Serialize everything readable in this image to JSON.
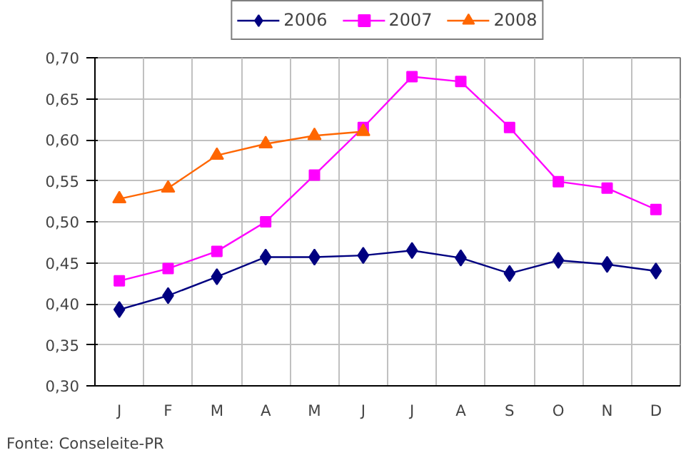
{
  "chart_data": {
    "type": "line",
    "categories": [
      "J",
      "F",
      "M",
      "A",
      "M",
      "J",
      "J",
      "A",
      "S",
      "O",
      "N",
      "D"
    ],
    "series": [
      {
        "name": "2006",
        "color": "#000080",
        "marker": "diamond",
        "values": [
          0.393,
          0.41,
          0.433,
          0.457,
          0.457,
          0.459,
          0.465,
          0.456,
          0.437,
          0.453,
          0.448,
          0.44
        ]
      },
      {
        "name": "2007",
        "color": "#ff00ff",
        "marker": "square",
        "values": [
          0.428,
          0.443,
          0.464,
          0.5,
          0.557,
          0.615,
          0.677,
          0.671,
          0.615,
          0.549,
          0.541,
          0.515
        ]
      },
      {
        "name": "2008",
        "color": "#ff6600",
        "marker": "triangle",
        "values": [
          0.528,
          0.541,
          0.581,
          0.595,
          0.605,
          0.61,
          null,
          null,
          null,
          null,
          null,
          null
        ]
      }
    ],
    "ylim": [
      0.3,
      0.7
    ],
    "yticks": [
      {
        "value": 0.3,
        "label": "0,30"
      },
      {
        "value": 0.35,
        "label": "0,35"
      },
      {
        "value": 0.4,
        "label": "0,40"
      },
      {
        "value": 0.45,
        "label": "0,45"
      },
      {
        "value": 0.5,
        "label": "0,50"
      },
      {
        "value": 0.55,
        "label": "0,55"
      },
      {
        "value": 0.6,
        "label": "0,60"
      },
      {
        "value": 0.65,
        "label": "0,65"
      },
      {
        "value": 0.7,
        "label": "0,70"
      }
    ],
    "grid": true,
    "legend": "top",
    "annotations": [
      "Fonte: Conseleite-PR"
    ]
  }
}
